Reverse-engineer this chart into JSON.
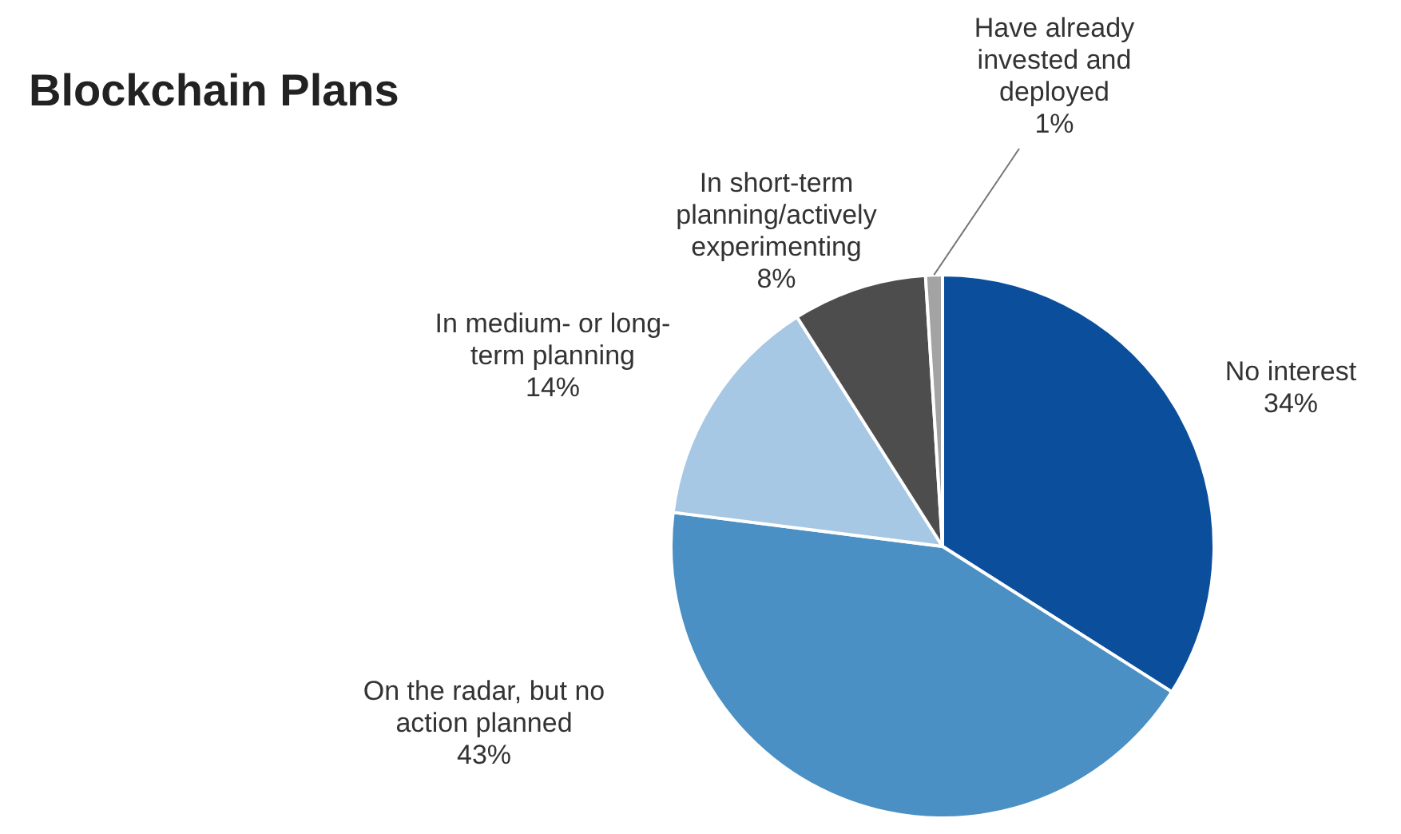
{
  "chart_data": {
    "type": "pie",
    "title": "Blockchain Plans",
    "categories": [
      "No interest",
      "On the radar, but no action planned",
      "In medium- or long-term planning",
      "In short-term planning/actively experimenting",
      "Have already invested and deployed"
    ],
    "values": [
      34,
      43,
      14,
      8,
      1
    ],
    "colors": [
      "#0b4f9c",
      "#4a90c4",
      "#a6c8e4",
      "#4d4d4d",
      "#a3a3a3"
    ],
    "value_labels": [
      "34%",
      "43%",
      "14%",
      "8%",
      "1%"
    ]
  }
}
